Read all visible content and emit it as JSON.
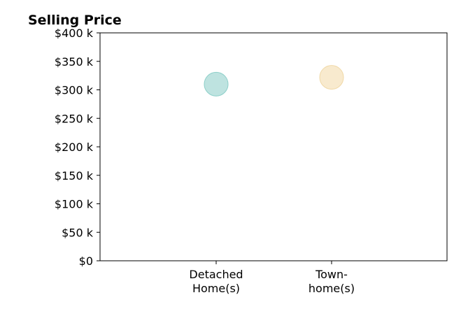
{
  "chart_data": {
    "type": "scatter",
    "title": "Selling Price",
    "xlabel": "",
    "ylabel": "",
    "categories": [
      [
        "Detached",
        "Home(s)"
      ],
      [
        "Town-",
        "home(s)"
      ]
    ],
    "values": [
      310000,
      322000
    ],
    "point_colors": [
      "#a8dad6",
      "#f5e3bd"
    ],
    "point_edge_colors": [
      "#8ccfc9",
      "#f0d8a6"
    ],
    "ylim": [
      0,
      400000
    ],
    "y_ticks": [
      {
        "value": 0,
        "label": "$0"
      },
      {
        "value": 50000,
        "label": "$50 k"
      },
      {
        "value": 100000,
        "label": "$100 k"
      },
      {
        "value": 150000,
        "label": "$150 k"
      },
      {
        "value": 200000,
        "label": "$200 k"
      },
      {
        "value": 250000,
        "label": "$250 k"
      },
      {
        "value": 300000,
        "label": "$300 k"
      },
      {
        "value": 350000,
        "label": "$350 k"
      },
      {
        "value": 400000,
        "label": "$400 k"
      }
    ],
    "grid": false,
    "legend": "none"
  }
}
